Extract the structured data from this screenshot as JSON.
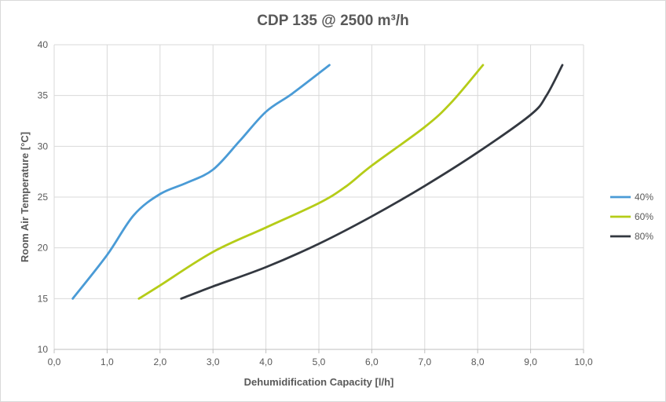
{
  "chart_data": {
    "type": "line",
    "title": "CDP 135 @ 2500 m³/h",
    "xlabel": "Dehumidification Capacity [l/h]",
    "ylabel": "Room Air  Temperature [°C]",
    "xlim": [
      0,
      10
    ],
    "ylim": [
      10,
      40
    ],
    "xticks": [
      "0,0",
      "1,0",
      "2,0",
      "3,0",
      "4,0",
      "5,0",
      "6,0",
      "7,0",
      "8,0",
      "9,0",
      "10,0"
    ],
    "yticks": [
      "10",
      "15",
      "20",
      "25",
      "30",
      "35",
      "40"
    ],
    "grid": true,
    "legend": "right",
    "series": [
      {
        "name": "40%",
        "color": "#4a9bd6",
        "points": [
          [
            0.35,
            15
          ],
          [
            1.0,
            19.3
          ],
          [
            1.5,
            23.2
          ],
          [
            2.0,
            25.3
          ],
          [
            2.5,
            26.4
          ],
          [
            3.0,
            27.7
          ],
          [
            3.5,
            30.5
          ],
          [
            4.0,
            33.4
          ],
          [
            4.5,
            35.2
          ],
          [
            5.2,
            38
          ]
        ]
      },
      {
        "name": "60%",
        "color": "#b5cc18",
        "points": [
          [
            1.6,
            15
          ],
          [
            2.0,
            16.3
          ],
          [
            3.0,
            19.6
          ],
          [
            4.0,
            22.0
          ],
          [
            5.0,
            24.4
          ],
          [
            5.5,
            26.0
          ],
          [
            6.0,
            28.1
          ],
          [
            7.0,
            31.9
          ],
          [
            7.5,
            34.3
          ],
          [
            8.1,
            38
          ]
        ]
      },
      {
        "name": "80%",
        "color": "#333840",
        "points": [
          [
            2.4,
            15
          ],
          [
            3.0,
            16.2
          ],
          [
            4.0,
            18.1
          ],
          [
            5.0,
            20.4
          ],
          [
            6.0,
            23.1
          ],
          [
            7.0,
            26.1
          ],
          [
            8.0,
            29.4
          ],
          [
            9.0,
            33.1
          ],
          [
            9.3,
            35
          ],
          [
            9.6,
            38
          ]
        ]
      }
    ]
  }
}
